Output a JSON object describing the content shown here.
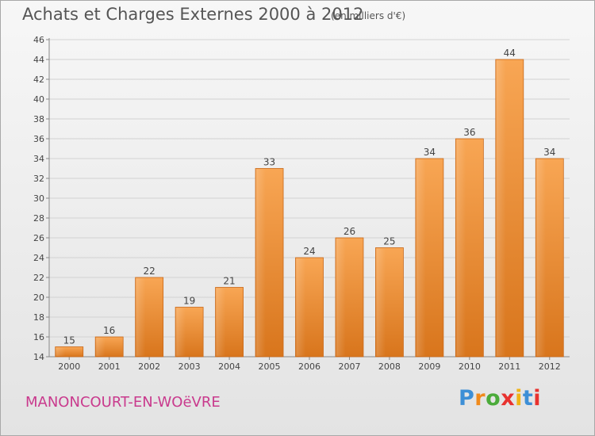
{
  "header": {
    "title": "Achats et Charges Externes 2000 à 2012",
    "subtitle": "(en milliers d'€)"
  },
  "footer": {
    "location": "MANONCOURT-EN-WOëVRE",
    "brand_letters": [
      "P",
      "r",
      "o",
      "x",
      "i",
      "t",
      "i"
    ],
    "brand_colors": [
      "#3d8fd6",
      "#f08a1c",
      "#4bab3a",
      "#e8322f",
      "#f0b416",
      "#3d8fd6",
      "#e8322f"
    ]
  },
  "chart_data": {
    "type": "bar",
    "title": "Achats et Charges Externes 2000 à 2012",
    "subtitle": "(en milliers d'€)",
    "xlabel": "",
    "ylabel": "",
    "categories": [
      "2000",
      "2001",
      "2002",
      "2003",
      "2004",
      "2005",
      "2006",
      "2007",
      "2008",
      "2009",
      "2010",
      "2011",
      "2012"
    ],
    "values": [
      15,
      16,
      22,
      19,
      21,
      33,
      24,
      26,
      25,
      34,
      36,
      44,
      34
    ],
    "ylim": [
      14,
      46
    ],
    "yticks": [
      14,
      16,
      18,
      20,
      22,
      24,
      26,
      28,
      30,
      32,
      34,
      36,
      38,
      40,
      42,
      44,
      46
    ],
    "grid": true,
    "bar_color_top": "#f8a654",
    "bar_color_bottom": "#d8751c"
  }
}
